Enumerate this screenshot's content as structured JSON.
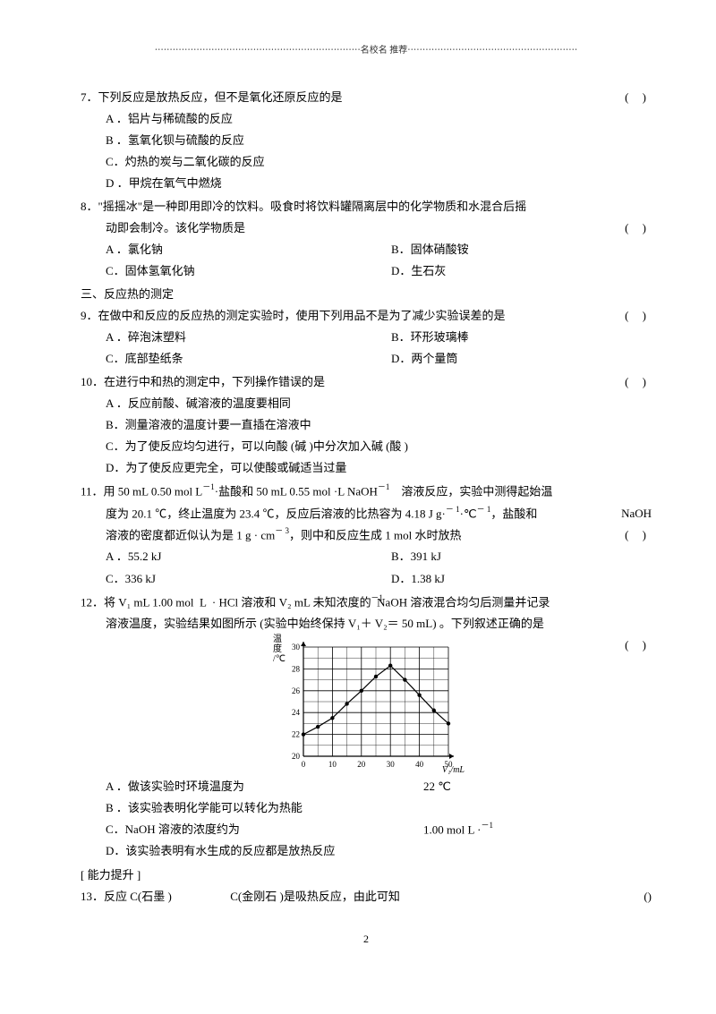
{
  "header": "⋯⋯⋯⋯⋯⋯⋯⋯⋯⋯⋯⋯⋯⋯⋯⋯⋯⋯⋯⋯⋯⋯⋯名校名 推荐⋯⋯⋯⋯⋯⋯⋯⋯⋯⋯⋯⋯⋯⋯⋯⋯⋯⋯⋯",
  "q7": {
    "stem": "7．下列反应是放热反应，但不是氧化还原反应的是",
    "A": "A ．铝片与稀硫酸的反应",
    "B": "B ．氢氧化钡与硫酸的反应",
    "C": "C．灼热的炭与二氧化碳的反应",
    "D": "D ．甲烷在氧气中燃烧"
  },
  "q8": {
    "stem1": "8．\"摇摇冰\"是一种即用即冷的饮料。吸食时将饮料罐隔离层中的化学物质和水混合后摇",
    "stem2": "动即会制冷。该化学物质是",
    "A": "A ．氯化钠",
    "B": "B．固体硝酸铵",
    "C": "C．固体氢氧化钠",
    "D": "D．生石灰"
  },
  "sec3": "三、反应热的测定",
  "q9": {
    "stem": "9．在做中和反应的反应热的测定实验时，使用下列用品不是为了减少实验误差的是",
    "A": "A ．碎泡沫塑料",
    "B": "B．环形玻璃棒",
    "C": "C．底部垫纸条",
    "D": "D．两个量筒"
  },
  "q10": {
    "stem": "10．在进行中和热的测定中，下列操作错误的是",
    "A": "A ．反应前酸、碱溶液的温度要相同",
    "B": "B．测量溶液的温度计要一直插在溶液中",
    "C": "C．为了使反应均匀进行，可以向酸    (碱 )中分次加入碱 (酸 )",
    "D": "D．为了使反应更完全，可以使酸或碱适当过量"
  },
  "q11": {
    "stem1a": "11．用 50 mL 0.50 mol   L",
    "stem1b": "·盐酸和  50 mL 0.55 mol ·L   NaOH",
    "stem1c": "溶液反应，实验中测得起始温",
    "stem2a": "度为 20.1 ℃，终止温度为  23.4  ℃，反应后溶液的比热容为    4.18 J g·",
    "stem2b": "·℃",
    "stem2c": "，盐酸和",
    "stem2d": "NaOH",
    "stem3a": "溶液的密度都近似认为是    1 g · cm",
    "stem3b": "，则中和反应生成   1 mol 水时放热",
    "A": "A ．55.2 kJ",
    "B": "B．391 kJ",
    "C": "C．336 kJ",
    "D": "D．1.38 kJ",
    "sup_neg1": "－1",
    "sup_neg1b": "－1",
    "sup_neg1c": "－ 1",
    "sup_neg1d": "－ 1",
    "sup_neg3": "－ 3"
  },
  "q12": {
    "stem1a": "12．将 V₁ mL 1.00 mol  L  · HCl 溶液和 V₂ mL 未知浓度的  NaOH 溶液混合均匀后测量并记录",
    "stem2": "溶液温度，实验结果如图所示    (实验中始终保持   V₁＋ V₂＝ 50 mL) 。下列叙述正确的是",
    "A": "A ．做该实验时环境温度为",
    "A2": "22 ℃",
    "B": "B ．该实验表明化学能可以转化为热能",
    "C": "C．NaOH 溶液的浓度约为",
    "C2": "1.00 mol L ·",
    "D": "D．该实验表明有水生成的反应都是放热反应",
    "sup_neg1": "－1",
    "sup_neg1b": "－1"
  },
  "ability": "[ 能力提升 ]",
  "q13": {
    "stem1": "13．反应  C(石墨 )",
    "stem2": "C(金刚石 )是吸热反应，由此可知"
  },
  "paren": "(       )",
  "paren13": "()",
  "page": "2",
  "chart": {
    "ylabel_lines": [
      "温",
      "度",
      "/℃"
    ],
    "yticks": [
      "30",
      "28",
      "26",
      "24",
      "22",
      "20"
    ],
    "xticks": [
      "0",
      "10",
      "20",
      "30",
      "40",
      "50"
    ],
    "xlabel": "V₁/mL",
    "grid_color": "#000000",
    "point_color": "#000000",
    "line_color": "#000000",
    "xlim": [
      0,
      50
    ],
    "ylim": [
      20,
      30
    ],
    "points": [
      [
        0,
        22
      ],
      [
        5,
        22.7
      ],
      [
        10,
        23.5
      ],
      [
        15,
        24.8
      ],
      [
        20,
        26
      ],
      [
        25,
        27.3
      ],
      [
        30,
        28.3
      ],
      [
        35,
        27
      ],
      [
        40,
        25.6
      ],
      [
        45,
        24.2
      ],
      [
        50,
        23
      ]
    ]
  }
}
